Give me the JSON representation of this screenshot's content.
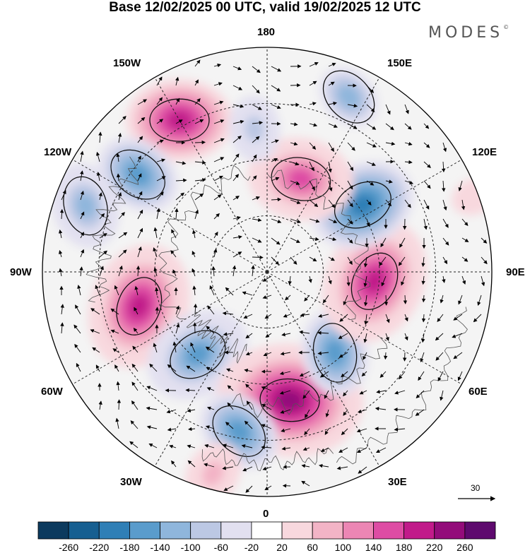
{
  "title": "Base 12/02/2025 00 UTC, valid 19/02/2025 12 UTC",
  "brand": "MODES",
  "brand_mark": "©",
  "lon_labels": {
    "top": "180",
    "bottom": "0",
    "left": "90W",
    "right": "90E",
    "upper_left_1": "150W",
    "upper_left_2": "120W",
    "upper_right_1": "150E",
    "upper_right_2": "120E",
    "lower_left_1": "60W",
    "lower_left_2": "30W",
    "lower_right_1": "60E",
    "lower_right_2": "30E"
  },
  "reference_vector": "30",
  "colorbar": {
    "labels": [
      "-260",
      "-220",
      "-180",
      "-140",
      "-100",
      "-60",
      "-20",
      "20",
      "60",
      "100",
      "140",
      "180",
      "220",
      "260"
    ],
    "colors": [
      "#0c3a5e",
      "#165f91",
      "#2f7fb6",
      "#5a9ccc",
      "#8fb6dc",
      "#bcc8e4",
      "#e2e0f0",
      "#ffffff",
      "#f8d8de",
      "#f3b4c6",
      "#ec86b4",
      "#de4ca4",
      "#c11a8a",
      "#930c7a",
      "#5e0a6e"
    ]
  },
  "anomalies": [
    {
      "value": 190,
      "lon": -150,
      "r": 0.78
    },
    {
      "value": -150,
      "lon": -127,
      "r": 0.72
    },
    {
      "value": -130,
      "lon": -110,
      "r": 0.86
    },
    {
      "value": 200,
      "lon": -75,
      "r": 0.59
    },
    {
      "value": -170,
      "lon": -40,
      "r": 0.48
    },
    {
      "value": 260,
      "lon": 10,
      "r": 0.58
    },
    {
      "value": -140,
      "lon": -10,
      "r": 0.72
    },
    {
      "value": -150,
      "lon": 40,
      "r": 0.47
    },
    {
      "value": 220,
      "lon": 85,
      "r": 0.48
    },
    {
      "value": -190,
      "lon": 125,
      "r": 0.52
    },
    {
      "value": 170,
      "lon": 160,
      "r": 0.44
    },
    {
      "value": -110,
      "lon": 155,
      "r": 0.86
    },
    {
      "value": -90,
      "lon": -175,
      "r": 0.64
    },
    {
      "value": 80,
      "lon": -15,
      "r": 0.93
    },
    {
      "value": 60,
      "lon": 110,
      "r": 0.98
    }
  ]
}
